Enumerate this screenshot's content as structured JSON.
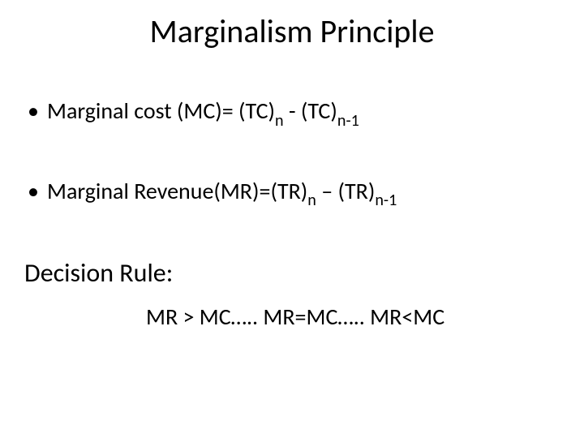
{
  "slide": {
    "title": "Marginalism Principle",
    "bullets": [
      {
        "prefix": "Marginal cost (MC)= (TC)",
        "sub1": "n",
        "mid": " - (TC)",
        "sub2": "n-1"
      },
      {
        "prefix": "Marginal Revenue(MR)=(TR)",
        "sub1": "n",
        "mid": " – (TR)",
        "sub2": "n-1"
      }
    ],
    "decision_heading": "Decision Rule:",
    "decision_body": "MR > MC….. MR=MC….. MR<MC"
  },
  "style": {
    "background_color": "#ffffff",
    "text_color": "#000000",
    "title_fontsize": 40,
    "body_fontsize": 28,
    "decision_heading_fontsize": 32,
    "font_family": "Calibri"
  }
}
